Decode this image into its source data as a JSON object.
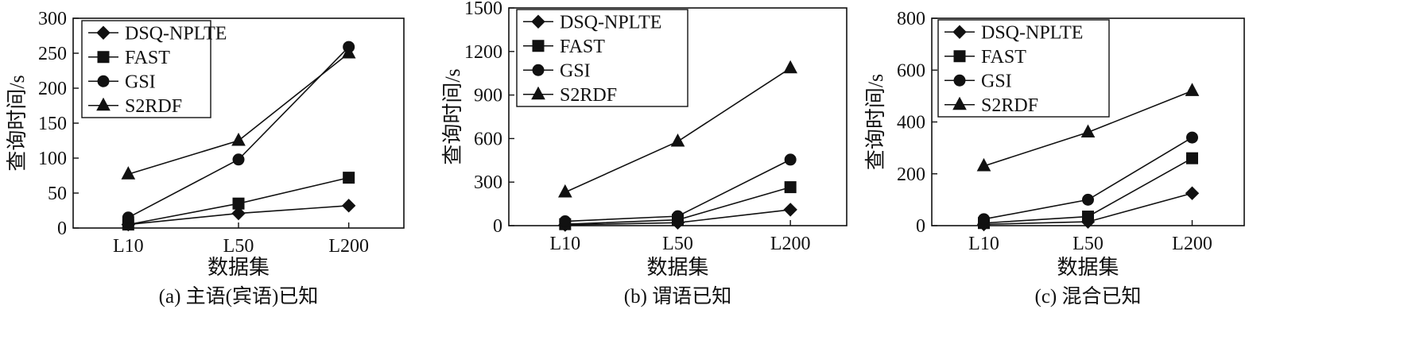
{
  "chart_data": [
    {
      "type": "line",
      "caption": "(a) 主语(宾语)已知",
      "xlabel": "数据集",
      "ylabel": "查询时间/s",
      "categories": [
        "L10",
        "L50",
        "L200"
      ],
      "ylim": [
        0,
        300
      ],
      "yticks": [
        0,
        50,
        100,
        150,
        200,
        250,
        300
      ],
      "legend_position": "top-left",
      "grid": false,
      "series": [
        {
          "name": "DSQ-NPLTE",
          "marker": "diamond",
          "values": [
            5,
            21,
            32
          ]
        },
        {
          "name": "FAST",
          "marker": "square",
          "values": [
            5,
            35,
            72
          ]
        },
        {
          "name": "GSI",
          "marker": "circle",
          "values": [
            15,
            98,
            259
          ]
        },
        {
          "name": "S2RDF",
          "marker": "triangle",
          "values": [
            77,
            125,
            250
          ]
        }
      ]
    },
    {
      "type": "line",
      "caption": "(b) 谓语已知",
      "xlabel": "数据集",
      "ylabel": "查询时间/s",
      "categories": [
        "L10",
        "L50",
        "L200"
      ],
      "ylim": [
        0,
        1500
      ],
      "yticks": [
        0,
        300,
        600,
        900,
        1200,
        1500
      ],
      "legend_position": "top-left",
      "grid": false,
      "series": [
        {
          "name": "DSQ-NPLTE",
          "marker": "diamond",
          "values": [
            5,
            20,
            110
          ]
        },
        {
          "name": "FAST",
          "marker": "square",
          "values": [
            10,
            40,
            265
          ]
        },
        {
          "name": "GSI",
          "marker": "circle",
          "values": [
            30,
            65,
            455
          ]
        },
        {
          "name": "S2RDF",
          "marker": "triangle",
          "values": [
            230,
            580,
            1085
          ]
        }
      ]
    },
    {
      "type": "line",
      "caption": "(c) 混合已知",
      "xlabel": "数据集",
      "ylabel": "查询时间/s",
      "categories": [
        "L10",
        "L50",
        "L200"
      ],
      "ylim": [
        0,
        800
      ],
      "yticks": [
        0,
        200,
        400,
        600,
        800
      ],
      "legend_position": "top-left",
      "grid": false,
      "series": [
        {
          "name": "DSQ-NPLTE",
          "marker": "diamond",
          "values": [
            5,
            15,
            125
          ]
        },
        {
          "name": "FAST",
          "marker": "square",
          "values": [
            10,
            35,
            260
          ]
        },
        {
          "name": "GSI",
          "marker": "circle",
          "values": [
            25,
            100,
            340
          ]
        },
        {
          "name": "S2RDF",
          "marker": "triangle",
          "values": [
            230,
            360,
            520
          ]
        }
      ]
    }
  ]
}
